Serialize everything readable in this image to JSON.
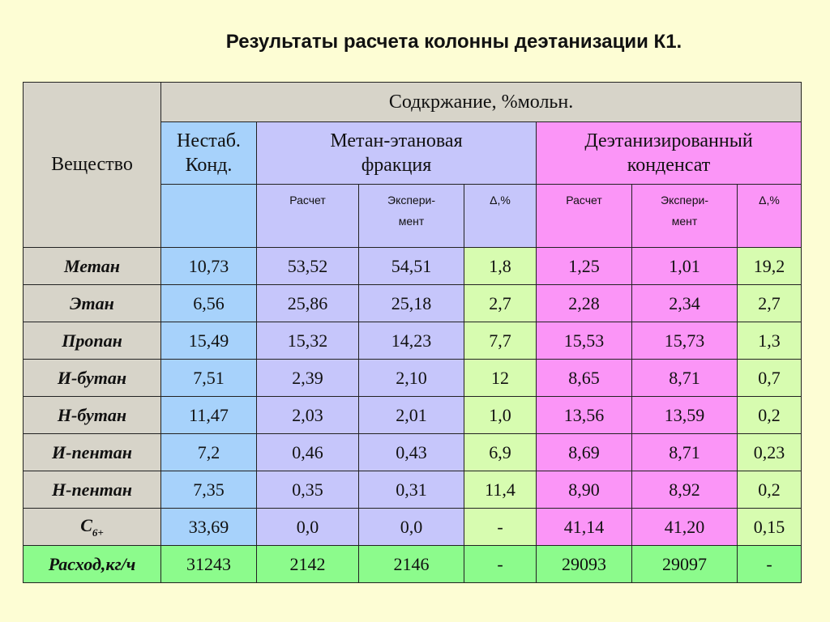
{
  "title": "Результаты расчета колонны деэтанизации К1.",
  "header": {
    "substance": "Вещество",
    "content": "Содкржание, %мольн.",
    "groups": {
      "unstable_line1": "Нестаб.",
      "unstable_line2": "Конд.",
      "methane_ethane_line1": "Метан-этановая",
      "methane_ethane_line2": "фракция",
      "deethanized_line1": "Деэтанизированный",
      "deethanized_line2": "конденсат"
    },
    "sub": {
      "calc": "Расчет",
      "exp_line1": "Экспери-",
      "exp_line2": "мент",
      "delta": "Δ,%"
    }
  },
  "rows": [
    {
      "name": "Метан",
      "unstable": "10,73",
      "me_calc": "53,52",
      "me_exp": "54,51",
      "me_delta": "1,8",
      "de_calc": "1,25",
      "de_exp": "1,01",
      "de_delta": "19,2"
    },
    {
      "name": "Этан",
      "unstable": "6,56",
      "me_calc": "25,86",
      "me_exp": "25,18",
      "me_delta": "2,7",
      "de_calc": "2,28",
      "de_exp": "2,34",
      "de_delta": "2,7"
    },
    {
      "name": "Пропан",
      "unstable": "15,49",
      "me_calc": "15,32",
      "me_exp": "14,23",
      "me_delta": "7,7",
      "de_calc": "15,53",
      "de_exp": "15,73",
      "de_delta": "1,3"
    },
    {
      "name": "И-бутан",
      "unstable": "7,51",
      "me_calc": "2,39",
      "me_exp": "2,10",
      "me_delta": "12",
      "de_calc": "8,65",
      "de_exp": "8,71",
      "de_delta": "0,7"
    },
    {
      "name": "Н-бутан",
      "unstable": "11,47",
      "me_calc": "2,03",
      "me_exp": "2,01",
      "me_delta": "1,0",
      "de_calc": "13,56",
      "de_exp": "13,59",
      "de_delta": "0,2"
    },
    {
      "name": "И-пентан",
      "unstable": "7,2",
      "me_calc": "0,46",
      "me_exp": "0,43",
      "me_delta": "6,9",
      "de_calc": "8,69",
      "de_exp": "8,71",
      "de_delta": "0,23"
    },
    {
      "name": "Н-пентан",
      "unstable": "7,35",
      "me_calc": "0,35",
      "me_exp": "0,31",
      "me_delta": "11,4",
      "de_calc": "8,90",
      "de_exp": "8,92",
      "de_delta": "0,2"
    },
    {
      "name": "С",
      "name_sub": "6+",
      "unstable": "33,69",
      "me_calc": "0,0",
      "me_exp": "0,0",
      "me_delta": "-",
      "de_calc": "41,14",
      "de_exp": "41,20",
      "de_delta": "0,15"
    }
  ],
  "flow": {
    "name": "Расход,кг/ч",
    "unstable": "31243",
    "me_calc": "2142",
    "me_exp": "2146",
    "me_delta": "-",
    "de_calc": "29093",
    "de_exp": "29097",
    "de_delta": "-"
  }
}
